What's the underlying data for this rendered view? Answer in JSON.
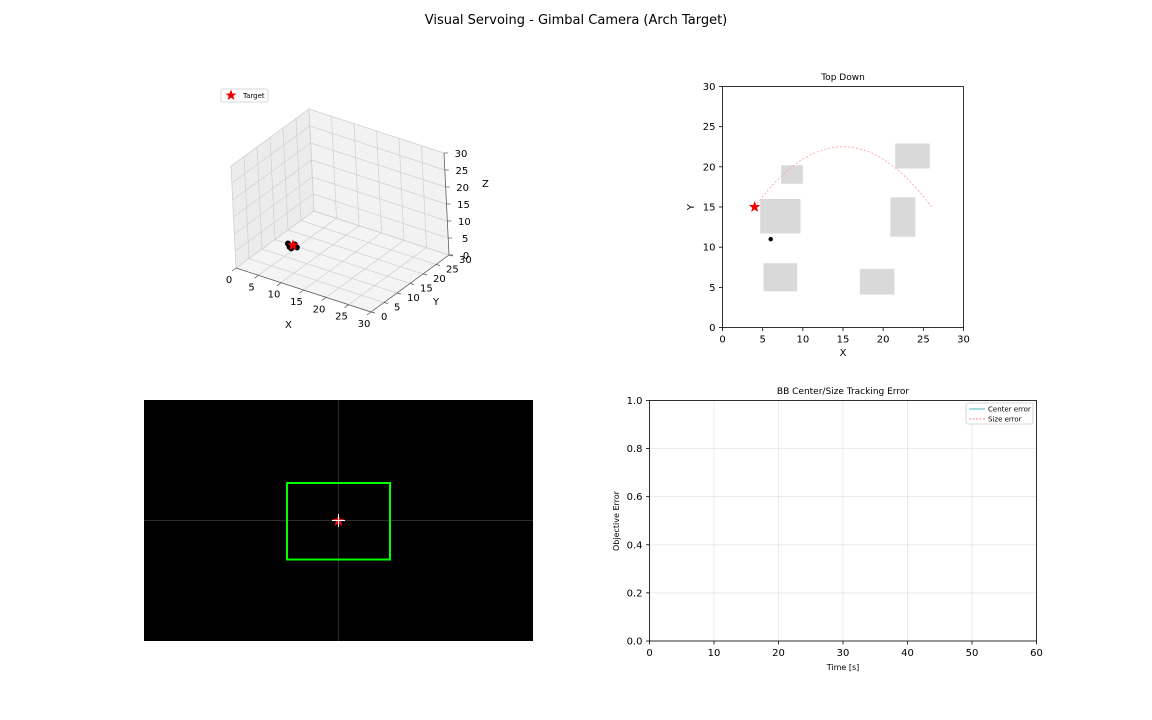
{
  "figure": {
    "title": "Visual Servoing - Gimbal Camera (Arch Target)"
  },
  "panel_3d": {
    "legend_label": "Target",
    "axis_labels": {
      "x": "X",
      "y": "Y",
      "z": "Z"
    },
    "x_ticks": [
      "0",
      "5",
      "10",
      "15",
      "20",
      "25",
      "30"
    ],
    "y_ticks": [
      "0",
      "5",
      "10",
      "15",
      "20",
      "25",
      "30"
    ],
    "z_ticks": [
      "0",
      "5",
      "10",
      "15",
      "20",
      "25",
      "30"
    ]
  },
  "panel_top": {
    "title": "Top Down",
    "xlabel": "X",
    "ylabel": "Y",
    "x_ticks": [
      "0",
      "5",
      "10",
      "15",
      "20",
      "25",
      "30"
    ],
    "y_ticks": [
      "0",
      "5",
      "10",
      "15",
      "20",
      "25",
      "30"
    ]
  },
  "panel_camera": {
    "background": "#000000",
    "box_color": "#00ff00"
  },
  "panel_error": {
    "title": "BB Center/Size Tracking Error",
    "xlabel": "Time [s]",
    "ylabel": "Objective Error",
    "x_ticks": [
      "0",
      "10",
      "20",
      "30",
      "40",
      "50",
      "60"
    ],
    "y_ticks": [
      "0.0",
      "0.2",
      "0.4",
      "0.6",
      "0.8",
      "1.0"
    ],
    "legend": [
      "Center error",
      "Size error"
    ]
  },
  "chart_data": [
    {
      "type": "scatter",
      "title": "",
      "xlabel": "X",
      "ylabel": "Y",
      "zlabel": "Z",
      "xlim": [
        0,
        30
      ],
      "ylim": [
        0,
        30
      ],
      "zlim": [
        0,
        30
      ],
      "projection": "3d",
      "legend": [
        "Target"
      ],
      "legend_position": "top-left",
      "target": {
        "x": 4,
        "y": 15,
        "z": 0
      },
      "drone_points": [
        {
          "x": 5.2,
          "y": 11.2,
          "z": 3.2
        },
        {
          "x": 6.0,
          "y": 10.4,
          "z": 3.0
        },
        {
          "x": 6.6,
          "y": 11.4,
          "z": 3.4
        },
        {
          "x": 7.4,
          "y": 10.8,
          "z": 3.2
        },
        {
          "x": 6.0,
          "y": 11.0,
          "z": 2.2
        }
      ]
    },
    {
      "type": "scatter",
      "title": "Top Down",
      "xlabel": "X",
      "ylabel": "Y",
      "xlim": [
        0,
        30
      ],
      "ylim": [
        0,
        30
      ],
      "grid": false,
      "target": {
        "x": 4,
        "y": 15
      },
      "drone": {
        "x": 6,
        "y": 11
      },
      "arch_path": {
        "x_start": 4,
        "x_end": 26,
        "y_at_ends": [
          15,
          15
        ],
        "peak": {
          "x": 15,
          "y": 22.5
        },
        "color": "#ff9999"
      },
      "obstacles": [
        {
          "x0": 7.3,
          "x1": 10,
          "y0": 17.9,
          "y1": 20.2
        },
        {
          "x0": 4.7,
          "x1": 9.7,
          "y0": 11.7,
          "y1": 16
        },
        {
          "x0": 21.5,
          "x1": 25.8,
          "y0": 19.8,
          "y1": 22.9
        },
        {
          "x0": 20.9,
          "x1": 24,
          "y0": 11.3,
          "y1": 16.2
        },
        {
          "x0": 5.1,
          "x1": 9.3,
          "y0": 4.5,
          "y1": 8
        },
        {
          "x0": 17.1,
          "x1": 21.4,
          "y0": 4.1,
          "y1": 7.3
        }
      ]
    },
    {
      "type": "line",
      "title": "BB Center/Size Tracking Error",
      "xlabel": "Time [s]",
      "ylabel": "Objective Error",
      "xlim": [
        0,
        60
      ],
      "ylim": [
        0,
        1
      ],
      "grid": true,
      "legend_position": "top-right",
      "series": [
        {
          "name": "Center error",
          "color": "#1f9e9e",
          "style": "solid",
          "x": [],
          "y": []
        },
        {
          "name": "Size error",
          "color": "#ff6666",
          "style": "dashed",
          "x": [],
          "y": []
        }
      ]
    }
  ]
}
